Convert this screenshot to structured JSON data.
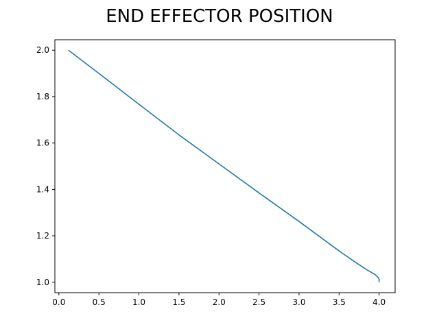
{
  "chart_data": {
    "type": "line",
    "title": "END EFFECTOR POSITION",
    "xlabel": "",
    "ylabel": "",
    "xlim": [
      -0.05,
      4.2
    ],
    "ylim": [
      0.955,
      2.045
    ],
    "xticks": [
      "0.0",
      "0.5",
      "1.0",
      "1.5",
      "2.0",
      "2.5",
      "3.0",
      "3.5",
      "4.0"
    ],
    "yticks": [
      "1.0",
      "1.2",
      "1.4",
      "1.6",
      "1.8",
      "2.0"
    ],
    "grid": false,
    "legend": "none",
    "series": [
      {
        "color": "#1f77b4",
        "x": [
          0.12,
          0.5,
          1.0,
          1.5,
          2.0,
          2.5,
          3.0,
          3.5,
          3.7,
          3.85,
          3.95,
          3.99,
          4.0,
          4.0
        ],
        "y": [
          2.0,
          1.9,
          1.767,
          1.635,
          1.51,
          1.385,
          1.262,
          1.135,
          1.087,
          1.053,
          1.033,
          1.02,
          1.012,
          1.0
        ]
      }
    ]
  }
}
